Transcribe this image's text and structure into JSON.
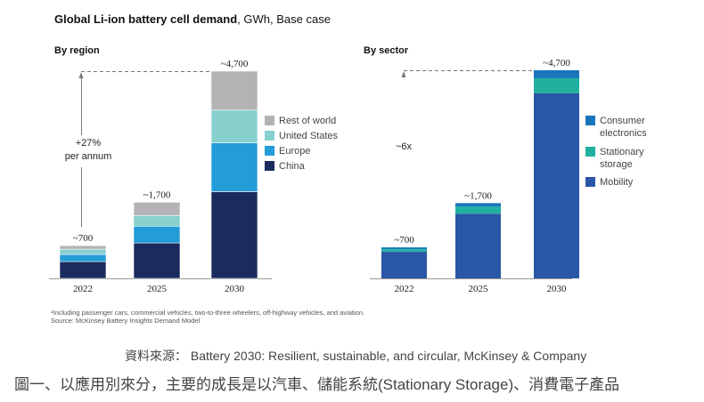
{
  "title_bold": "Global Li-ion battery cell demand",
  "title_rest": ", GWh, Base case",
  "footnote": "¹Including passenger cars, commercial vehicles, two-to-three wheelers, off-highway vehicles, and aviation.",
  "source": "Source: McKinsey Battery Insights Demand Model",
  "source_cn": "資料來源： Battery 2030: Resilient, sustainable, and circular, McKinsey & Company",
  "caption_cn": "圖一、以應用別來分，主要的成長是以汽車、儲能系統(Stationary Storage)、消費電子產品",
  "chart_data": [
    {
      "type": "bar",
      "stacked": true,
      "title": "By region",
      "xlabel": "",
      "ylabel": "GWh",
      "ylim": [
        0,
        4700
      ],
      "categories": [
        "2022",
        "2025",
        "2030"
      ],
      "totals_labels": [
        "~700",
        "~1,700",
        "~4,700"
      ],
      "annotation": "+27%\nper annum",
      "annotation_lines": [
        "+27%",
        "per annum"
      ],
      "legend_position": "right",
      "series": [
        {
          "name": "China",
          "color": "#1c2b5e",
          "values": [
            380,
            800,
            1960
          ]
        },
        {
          "name": "Europe",
          "color": "#239cd8",
          "values": [
            160,
            380,
            1100
          ]
        },
        {
          "name": "United States",
          "color": "#87d0cd",
          "values": [
            120,
            240,
            740
          ]
        },
        {
          "name": "Rest of world",
          "color": "#b3b3b5",
          "values": [
            80,
            300,
            880
          ]
        }
      ],
      "legend_order": [
        "Rest of world",
        "United States",
        "Europe",
        "China"
      ]
    },
    {
      "type": "bar",
      "stacked": true,
      "title": "By sector",
      "xlabel": "",
      "ylabel": "GWh",
      "ylim": [
        0,
        4700
      ],
      "categories": [
        "2022",
        "2025",
        "2030"
      ],
      "totals_labels": [
        "~700",
        "~1,700",
        "~4,700"
      ],
      "annotation": "~6x",
      "annotation_lines": [
        "~6x"
      ],
      "legend_position": "right",
      "series": [
        {
          "name": "Mobility",
          "color": "#2a56a6",
          "values": [
            600,
            1460,
            4180
          ]
        },
        {
          "name": "Stationary storage",
          "color": "#20b0a0",
          "values": [
            60,
            160,
            340
          ]
        },
        {
          "name": "Consumer electronics",
          "color": "#1976bb",
          "values": [
            40,
            80,
            180
          ]
        }
      ],
      "legend_order": [
        "Consumer electronics",
        "Stationary storage",
        "Mobility"
      ],
      "legend_lines": [
        [
          "Consumer",
          "electronics"
        ],
        [
          "Stationary",
          "storage"
        ],
        [
          "Mobility"
        ]
      ]
    }
  ]
}
